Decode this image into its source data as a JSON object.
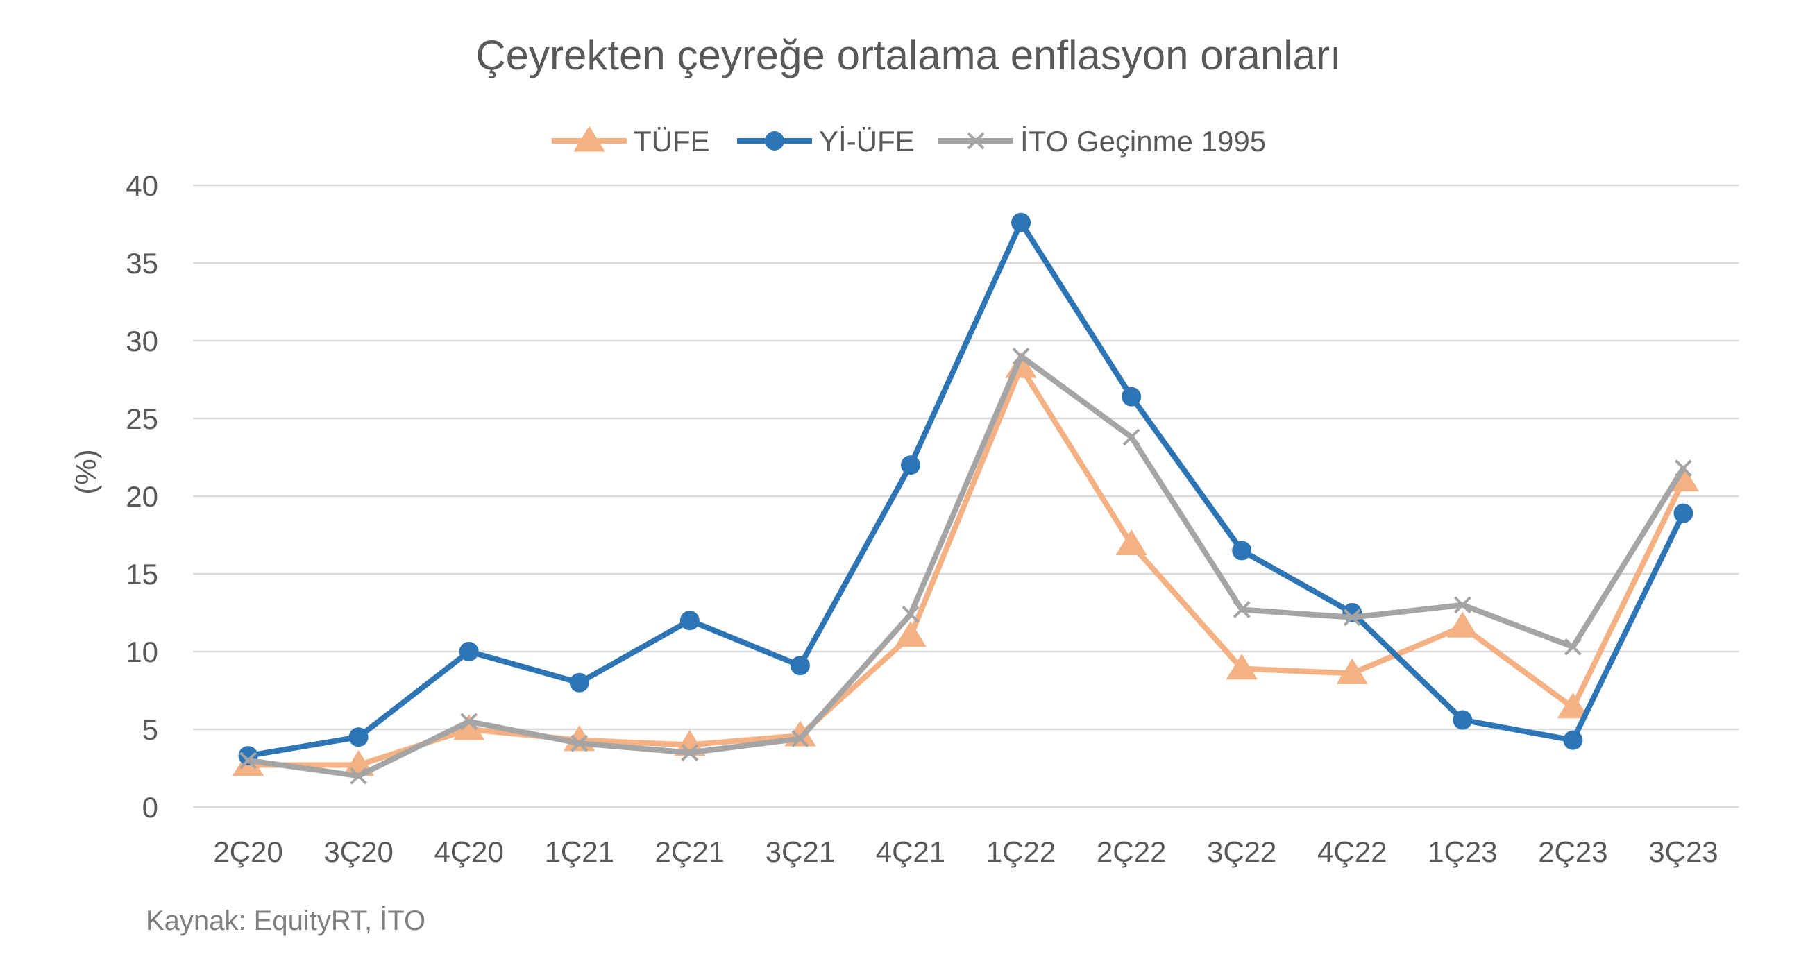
{
  "chart_data": {
    "type": "line",
    "title": "Çeyrekten çeyreğe ortalama enflasyon oranları",
    "xlabel": "",
    "ylabel": "(%)",
    "source": "Kaynak: EquityRT, İTO",
    "ylim": [
      0,
      40
    ],
    "yticks": [
      "0",
      "5",
      "10",
      "15",
      "20",
      "25",
      "30",
      "35",
      "40"
    ],
    "ytick_values": [
      0,
      5,
      10,
      15,
      20,
      25,
      30,
      35,
      40
    ],
    "grid": true,
    "legend_position": "top",
    "categories": [
      "2Ç20",
      "3Ç20",
      "4Ç20",
      "1Ç21",
      "2Ç21",
      "3Ç21",
      "4Ç21",
      "1Ç22",
      "2Ç22",
      "3Ç22",
      "4Ç22",
      "1Ç23",
      "2Ç23",
      "3Ç23"
    ],
    "series": [
      {
        "name": "TÜFE",
        "color": "#f4b183",
        "marker": "triangle",
        "values": [
          2.7,
          2.7,
          5.0,
          4.3,
          4.0,
          4.6,
          11.0,
          28.3,
          16.9,
          8.9,
          8.6,
          11.6,
          6.4,
          21.0
        ]
      },
      {
        "name": "Yİ-ÜFE",
        "color": "#2e75b6",
        "marker": "circle",
        "values": [
          3.3,
          4.5,
          10.0,
          8.0,
          12.0,
          9.1,
          22.0,
          37.6,
          26.4,
          16.5,
          12.5,
          5.6,
          4.3,
          18.9
        ]
      },
      {
        "name": "İTO  Geçinme 1995",
        "color": "#a5a5a5",
        "marker": "x",
        "values": [
          3.0,
          2.0,
          5.5,
          4.1,
          3.5,
          4.4,
          12.4,
          29.0,
          23.8,
          12.7,
          12.2,
          13.0,
          10.3,
          21.8
        ]
      }
    ]
  }
}
